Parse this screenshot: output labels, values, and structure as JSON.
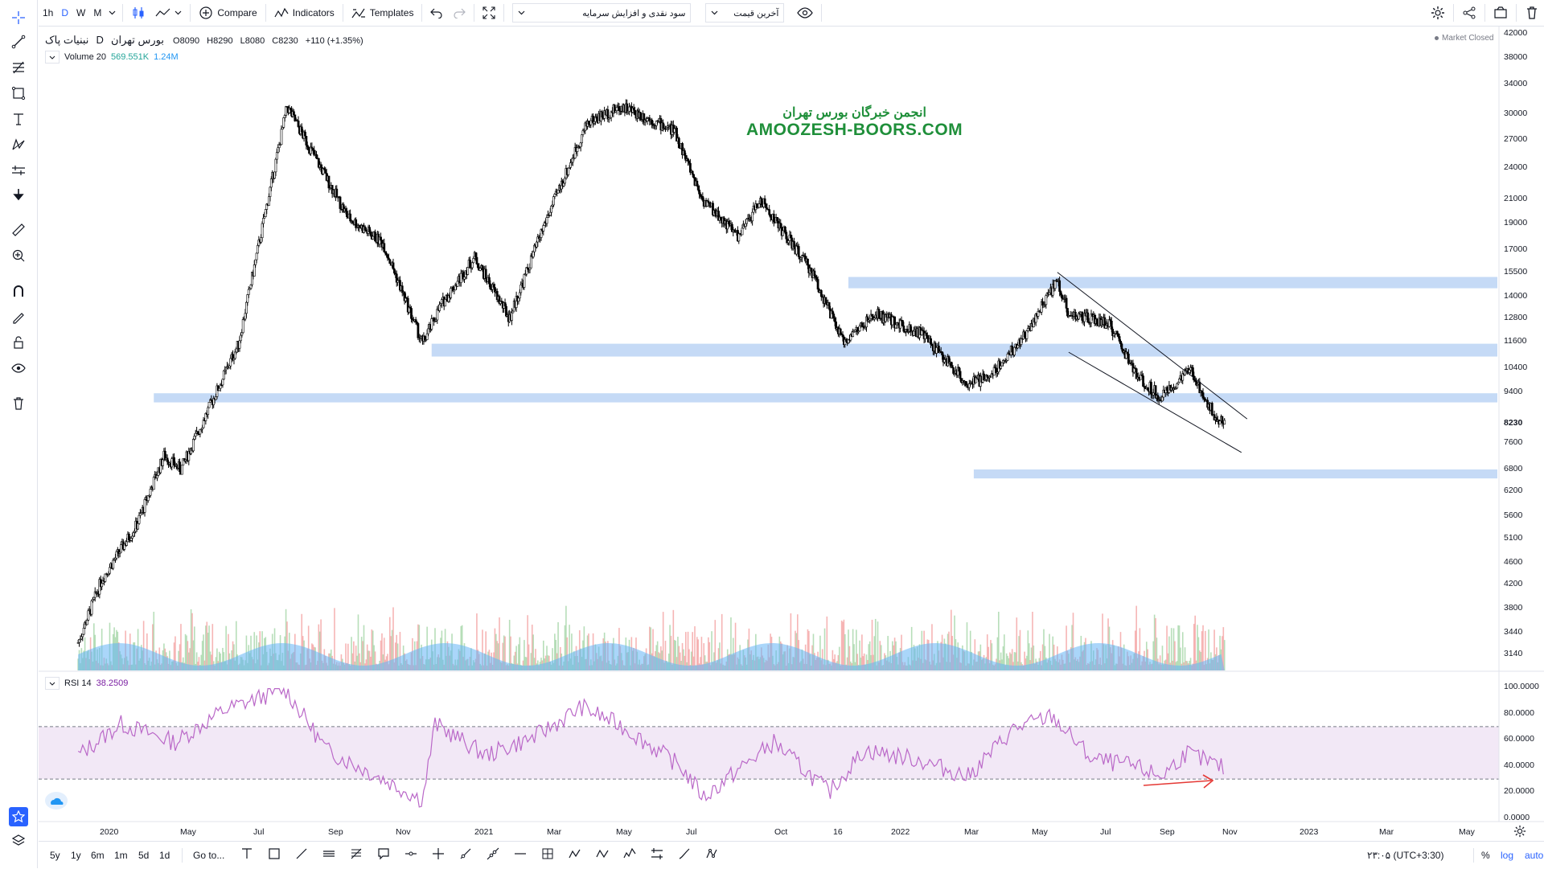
{
  "toolbar": {
    "intervals": [
      "1h",
      "D",
      "W",
      "M"
    ],
    "compare_label": "Compare",
    "indicators_label": "Indicators",
    "templates_label": "Templates",
    "dropdown1": "سود نقدی و افزایش سرمایه",
    "dropdown2": "آخرین قیمت"
  },
  "symbol": {
    "name": "نبنیات پاک",
    "exchange": "بورس تهران",
    "interval": "D",
    "open": "O8090",
    "high": "H8290",
    "low": "L8080",
    "close": "C8230",
    "change": "+110 (+1.35%)"
  },
  "volume": {
    "label": "Volume 20",
    "value1": "569.551K",
    "value2": "1.24M"
  },
  "rsi": {
    "label": "RSI 14",
    "value": "38.2509"
  },
  "market_status": "Market Closed",
  "watermark": {
    "line1": "انجمن خبرگان بورس تهران",
    "line2": "AMOOZESH-BOORS.COM"
  },
  "price_axis": {
    "ticks": [
      "42000",
      "38000",
      "34000",
      "30000",
      "27000",
      "24000",
      "21000",
      "19000",
      "17000",
      "15500",
      "14000",
      "12800",
      "11600",
      "10400",
      "9400",
      "7600",
      "6800",
      "6200",
      "5600",
      "5100",
      "4600",
      "4200",
      "3800",
      "3440",
      "3140"
    ],
    "last_price": "8230"
  },
  "rsi_axis": {
    "ticks": [
      "100.0000",
      "80.0000",
      "60.0000",
      "40.0000",
      "20.0000",
      "0.0000"
    ]
  },
  "time_axis": {
    "labels": [
      "2020",
      "May",
      "Jul",
      "Sep",
      "Nov",
      "2021",
      "Mar",
      "May",
      "Jul",
      "Oct",
      "16",
      "2022",
      "Mar",
      "May",
      "Jul",
      "Sep",
      "Nov",
      "2023",
      "Mar",
      "May"
    ]
  },
  "bottom": {
    "ranges": [
      "5y",
      "1y",
      "6m",
      "1m",
      "5d",
      "1d"
    ],
    "goto": "Go to...",
    "clock": "۲۳:۰۵ (UTC+3:30)",
    "percent": "%",
    "log": "log",
    "auto": "auto"
  },
  "chart_data": {
    "type": "candlestick",
    "scale": "log",
    "support_zones": [
      {
        "from": 14500,
        "to": 15200
      },
      {
        "from": 10900,
        "to": 11500
      },
      {
        "from": 9000,
        "to": 9350
      },
      {
        "from": 6550,
        "to": 6800
      }
    ],
    "close_path": [
      {
        "x": "2019-12-25",
        "y": 3300
      },
      {
        "x": "2020-01-15",
        "y": 4300
      },
      {
        "x": "2020-02-15",
        "y": 5400
      },
      {
        "x": "2020-03-10",
        "y": 7200
      },
      {
        "x": "2020-03-25",
        "y": 6800
      },
      {
        "x": "2020-05-15",
        "y": 11500
      },
      {
        "x": "2020-06-27",
        "y": 31000
      },
      {
        "x": "2020-08-20",
        "y": 19500
      },
      {
        "x": "2020-09-20",
        "y": 17500
      },
      {
        "x": "2020-10-25",
        "y": 11500
      },
      {
        "x": "2020-11-10",
        "y": 13500
      },
      {
        "x": "2020-12-10",
        "y": 16500
      },
      {
        "x": "2021-01-10",
        "y": 12800
      },
      {
        "x": "2021-02-10",
        "y": 19000
      },
      {
        "x": "2021-03-20",
        "y": 29000
      },
      {
        "x": "2021-04-20",
        "y": 31000
      },
      {
        "x": "2021-06-05",
        "y": 28000
      },
      {
        "x": "2021-06-30",
        "y": 21000
      },
      {
        "x": "2021-08-01",
        "y": 18000
      },
      {
        "x": "2021-08-20",
        "y": 21000
      },
      {
        "x": "2021-10-05",
        "y": 15500
      },
      {
        "x": "2021-11-01",
        "y": 11600
      },
      {
        "x": "2021-12-01",
        "y": 13000
      },
      {
        "x": "2022-01-10",
        "y": 12000
      },
      {
        "x": "2022-02-20",
        "y": 9700
      },
      {
        "x": "2022-03-10",
        "y": 10000
      },
      {
        "x": "2022-04-10",
        "y": 11800
      },
      {
        "x": "2022-05-10",
        "y": 15000
      },
      {
        "x": "2022-05-20",
        "y": 13000
      },
      {
        "x": "2022-06-25",
        "y": 12500
      },
      {
        "x": "2022-07-20",
        "y": 10000
      },
      {
        "x": "2022-08-10",
        "y": 9200
      },
      {
        "x": "2022-09-05",
        "y": 10300
      },
      {
        "x": "2022-09-25",
        "y": 8600
      },
      {
        "x": "2022-10-05",
        "y": 8230
      }
    ],
    "channel": {
      "upper": [
        {
          "x": "2022-05-10",
          "y": 15500
        },
        {
          "x": "2022-10-25",
          "y": 8400
        }
      ],
      "lower": [
        {
          "x": "2022-05-20",
          "y": 11100
        },
        {
          "x": "2022-10-20",
          "y": 7300
        }
      ]
    },
    "rsi_band": [
      30,
      70
    ],
    "rsi_path": [
      {
        "x": "2019-12-25",
        "y": 48
      },
      {
        "x": "2020-02-01",
        "y": 72
      },
      {
        "x": "2020-03-20",
        "y": 58
      },
      {
        "x": "2020-05-01",
        "y": 82
      },
      {
        "x": "2020-06-25",
        "y": 99
      },
      {
        "x": "2020-08-01",
        "y": 52
      },
      {
        "x": "2020-09-20",
        "y": 30
      },
      {
        "x": "2020-10-25",
        "y": 14
      },
      {
        "x": "2020-11-05",
        "y": 72
      },
      {
        "x": "2020-12-20",
        "y": 48
      },
      {
        "x": "2021-02-01",
        "y": 62
      },
      {
        "x": "2021-03-15",
        "y": 85
      },
      {
        "x": "2021-04-20",
        "y": 70
      },
      {
        "x": "2021-06-10",
        "y": 40
      },
      {
        "x": "2021-07-01",
        "y": 16
      },
      {
        "x": "2021-08-05",
        "y": 40
      },
      {
        "x": "2021-09-01",
        "y": 58
      },
      {
        "x": "2021-10-20",
        "y": 20
      },
      {
        "x": "2021-11-20",
        "y": 52
      },
      {
        "x": "2022-01-05",
        "y": 45
      },
      {
        "x": "2022-02-20",
        "y": 32
      },
      {
        "x": "2022-04-01",
        "y": 68
      },
      {
        "x": "2022-05-05",
        "y": 78
      },
      {
        "x": "2022-06-10",
        "y": 45
      },
      {
        "x": "2022-07-15",
        "y": 40
      },
      {
        "x": "2022-08-10",
        "y": 32
      },
      {
        "x": "2022-09-01",
        "y": 50
      },
      {
        "x": "2022-10-05",
        "y": 38
      }
    ]
  }
}
